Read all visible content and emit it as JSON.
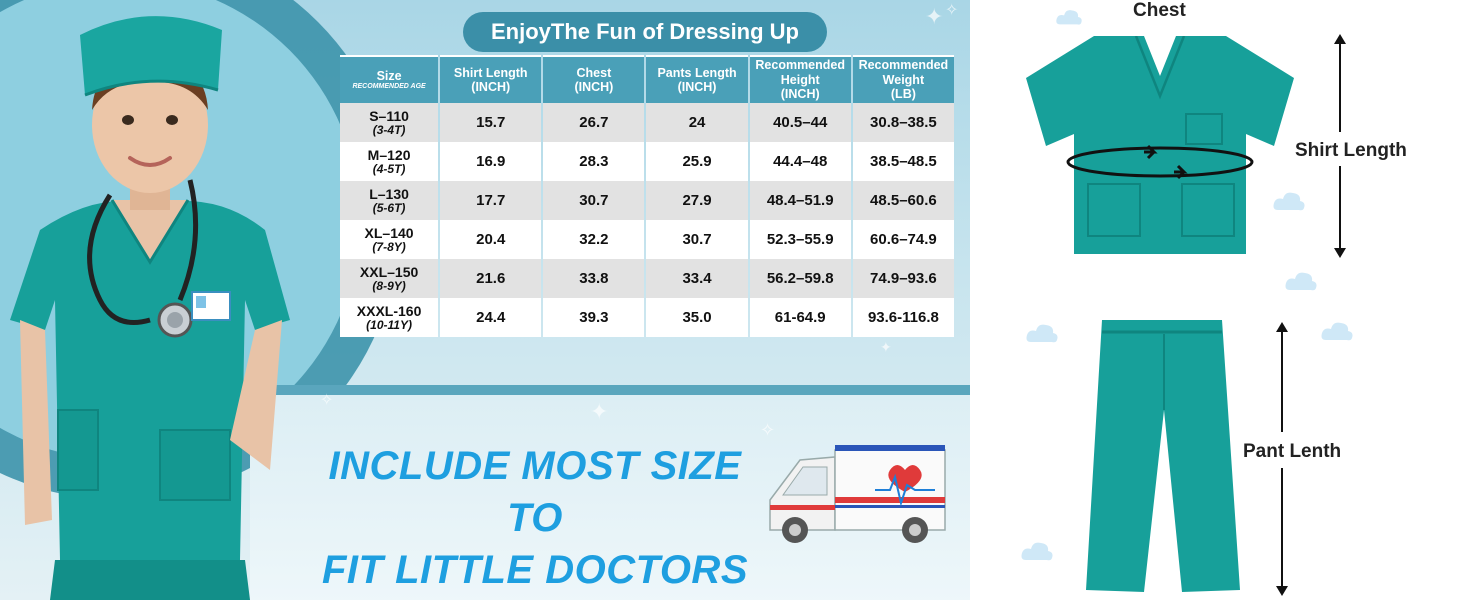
{
  "title": "EnjoyThe Fun of Dressing Up",
  "table": {
    "headers": [
      {
        "label": "Size",
        "sub": "RECOMMENDED AGE"
      },
      {
        "label": "Shirt Length",
        "sub2": "(INCH)"
      },
      {
        "label": "Chest",
        "sub2": "(INCH)"
      },
      {
        "label": "Pants Length",
        "sub2": "(INCH)"
      },
      {
        "label": "Recommended Height",
        "sub2": "(INCH)"
      },
      {
        "label": "Recommended Weight",
        "sub2": "(LB)"
      }
    ],
    "rows": [
      {
        "size": "S–110",
        "age": "(3-4T)",
        "shirt": "15.7",
        "chest": "26.7",
        "pants": "24",
        "height": "40.5–44",
        "weight": "30.8–38.5"
      },
      {
        "size": "M–120",
        "age": "(4-5T)",
        "shirt": "16.9",
        "chest": "28.3",
        "pants": "25.9",
        "height": "44.4–48",
        "weight": "38.5–48.5"
      },
      {
        "size": "L–130",
        "age": "(5-6T)",
        "shirt": "17.7",
        "chest": "30.7",
        "pants": "27.9",
        "height": "48.4–51.9",
        "weight": "48.5–60.6"
      },
      {
        "size": "XL–140",
        "age": "(7-8Y)",
        "shirt": "20.4",
        "chest": "32.2",
        "pants": "30.7",
        "height": "52.3–55.9",
        "weight": "60.6–74.9"
      },
      {
        "size": "XXL–150",
        "age": "(8-9Y)",
        "shirt": "21.6",
        "chest": "33.8",
        "pants": "33.4",
        "height": "56.2–59.8",
        "weight": "74.9–93.6"
      },
      {
        "size": "XXXL-160",
        "age": "(10-11Y)",
        "shirt": "24.4",
        "chest": "39.3",
        "pants": "35.0",
        "height": "61-64.9",
        "weight": "93.6-116.8"
      }
    ]
  },
  "headline": {
    "line1": "INCLUDE MOST SIZE TO",
    "line2": "FIT LITTLE DOCTORS"
  },
  "diagram": {
    "chest_label": "Chest",
    "shirt_length_label": "Shirt Length",
    "pant_length_label": "Pant Lenth"
  },
  "colors": {
    "scrub": "#17a09a",
    "scrub_dark": "#0f857f",
    "header_bg": "#4aa0b8",
    "title_bg": "#3b8fa8",
    "headline": "#1e9fe0"
  }
}
